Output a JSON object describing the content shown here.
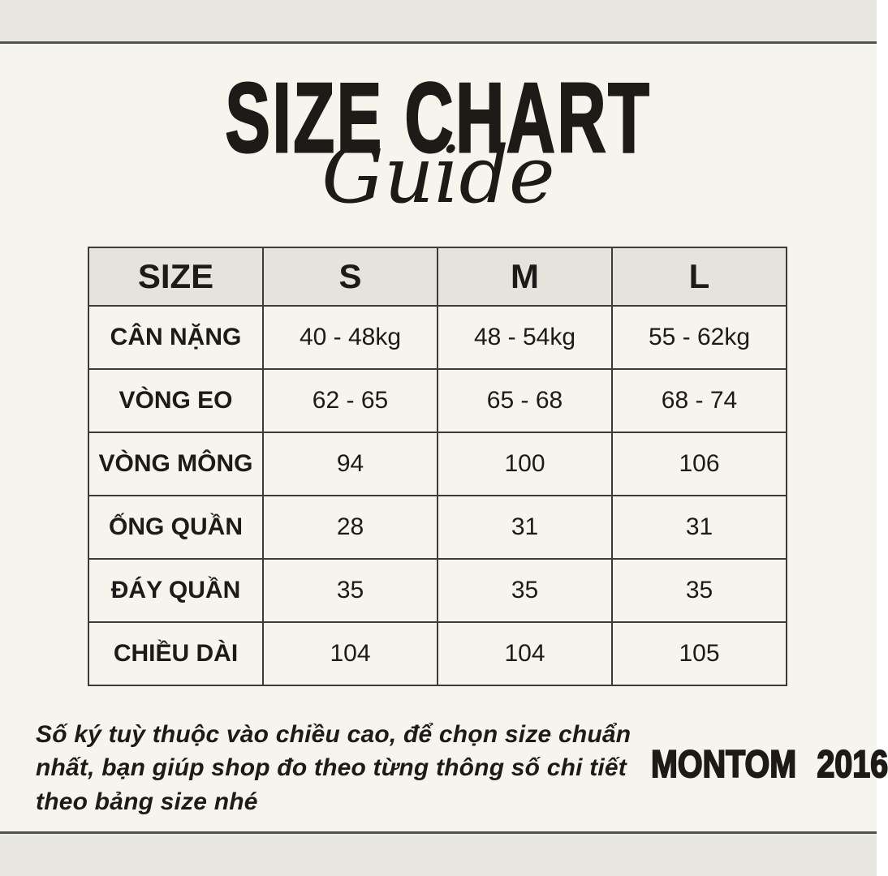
{
  "page": {
    "background_color": "#f5f4ed",
    "band_color": "#e8e8e1",
    "rule_color": "#51514b",
    "text_color": "#1d1b17"
  },
  "header": {
    "title": "SIZE CHART",
    "subtitle": "Guide"
  },
  "chart_data": {
    "type": "table",
    "title": "SIZE CHART Guide",
    "columns": [
      "SIZE",
      "S",
      "M",
      "L"
    ],
    "rows": [
      {
        "label": "CÂN NẶNG",
        "values": [
          "40 - 48kg",
          "48 - 54kg",
          "55 - 62kg"
        ]
      },
      {
        "label": "VÒNG EO",
        "values": [
          "62 - 65",
          "65 - 68",
          "68 - 74"
        ]
      },
      {
        "label": "VÒNG MÔNG",
        "values": [
          "94",
          "100",
          "106"
        ]
      },
      {
        "label": "ỐNG QUẦN",
        "values": [
          "28",
          "31",
          "31"
        ]
      },
      {
        "label": "ĐÁY QUẦN",
        "values": [
          "35",
          "35",
          "35"
        ]
      },
      {
        "label": "CHIỀU DÀI",
        "values": [
          "104",
          "104",
          "105"
        ]
      }
    ],
    "header_bg": "#e4e4dd",
    "border_color": "#3c3c37"
  },
  "footer": {
    "note": "Số ký tuỳ thuộc vào chiều cao, để chọn size chuẩn nhất, bạn giúp shop đo theo từng thông số chi tiết theo bảng size nhé",
    "brand": "MONTOM",
    "year": "2016"
  }
}
